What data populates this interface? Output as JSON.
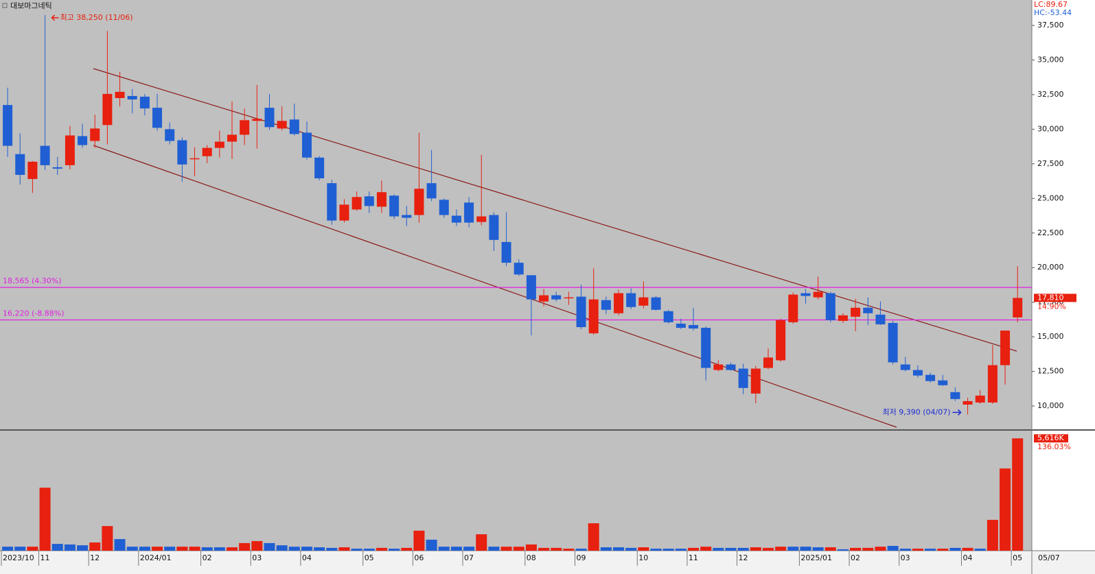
{
  "chart_data": {
    "type": "candlestick",
    "title": "대보마그네틱",
    "indicators": [
      "LC:89.67",
      "HC:-53.44"
    ],
    "date_label": "05/07",
    "up_color": "#e8200f",
    "down_color": "#1f5fd3",
    "categories": [
      "2023/10",
      null,
      null,
      "11",
      null,
      null,
      null,
      "12",
      null,
      null,
      null,
      "2024/01",
      null,
      null,
      null,
      null,
      "02",
      null,
      null,
      null,
      "03",
      null,
      null,
      null,
      "04",
      null,
      null,
      null,
      null,
      "05",
      null,
      null,
      null,
      "06",
      null,
      null,
      null,
      "07",
      null,
      null,
      null,
      null,
      "08",
      null,
      null,
      null,
      "09",
      null,
      null,
      null,
      null,
      "10",
      null,
      null,
      null,
      "11",
      null,
      null,
      null,
      "12",
      null,
      null,
      null,
      null,
      "2025/01",
      null,
      null,
      null,
      "02",
      null,
      null,
      null,
      "03",
      null,
      null,
      null,
      null,
      "04",
      null,
      null,
      null,
      "05"
    ],
    "open": [
      31750,
      28200,
      26400,
      28800,
      27250,
      27400,
      29500,
      29150,
      30300,
      32250,
      32400,
      32350,
      31550,
      30000,
      29200,
      27850,
      28050,
      28650,
      29100,
      29600,
      30600,
      31550,
      30050,
      30700,
      29750,
      27950,
      26100,
      23400,
      24200,
      25150,
      24400,
      25200,
      23800,
      23800,
      26100,
      24900,
      23750,
      24700,
      23300,
      23800,
      21850,
      20350,
      19450,
      17550,
      18000,
      17800,
      17900,
      15250,
      17650,
      16700,
      18150,
      17250,
      17850,
      16850,
      15950,
      15850,
      15650,
      12600,
      13000,
      12700,
      10900,
      12750,
      13300,
      16050,
      18150,
      17850,
      18150,
      16150,
      16450,
      17100,
      16600,
      16000,
      13000,
      12600,
      12250,
      11850,
      11000,
      10100,
      10250,
      10250,
      12950,
      16400
    ],
    "high": [
      33000,
      29700,
      27700,
      38250,
      28000,
      30250,
      30400,
      31050,
      37100,
      34150,
      32900,
      32550,
      32550,
      30500,
      29400,
      28700,
      28850,
      29900,
      32000,
      31500,
      33200,
      32550,
      31650,
      31850,
      30550,
      28050,
      26350,
      24950,
      25500,
      25500,
      26300,
      25300,
      24450,
      29750,
      28500,
      25000,
      24200,
      25100,
      28150,
      24000,
      24000,
      20600,
      19450,
      18450,
      18250,
      18250,
      18750,
      19950,
      17900,
      18400,
      18500,
      19000,
      17950,
      16950,
      16300,
      17100,
      15750,
      13300,
      13150,
      13050,
      12900,
      14150,
      16300,
      18200,
      18450,
      19350,
      18250,
      16700,
      17750,
      17850,
      17550,
      16150,
      13550,
      12950,
      12400,
      12250,
      11350,
      10600,
      11150,
      14400,
      15450,
      20100
    ],
    "low": [
      28000,
      26000,
      25400,
      27050,
      26700,
      27100,
      28650,
      28650,
      28900,
      31650,
      31150,
      31000,
      29900,
      28900,
      26200,
      26600,
      27550,
      27950,
      27850,
      28850,
      28600,
      29950,
      29900,
      29550,
      27800,
      26300,
      23100,
      23250,
      24100,
      23950,
      23950,
      23500,
      23000,
      23250,
      24800,
      23600,
      23000,
      22900,
      23050,
      21200,
      20100,
      19400,
      15100,
      17200,
      17550,
      17300,
      15550,
      15150,
      16650,
      16550,
      17000,
      17050,
      16900,
      15950,
      15550,
      15450,
      11850,
      12500,
      12550,
      10850,
      10200,
      12650,
      13200,
      15950,
      17400,
      17700,
      16050,
      16000,
      15400,
      15850,
      15850,
      13000,
      12500,
      12050,
      11700,
      11450,
      10350,
      9390,
      10150,
      10150,
      11550,
      16050
    ],
    "close": [
      28800,
      26700,
      27650,
      27400,
      27150,
      29550,
      28850,
      30050,
      32550,
      32700,
      32150,
      31500,
      30100,
      29150,
      27450,
      27900,
      28650,
      29100,
      29600,
      30650,
      30750,
      30150,
      30600,
      29650,
      27950,
      26450,
      23400,
      24550,
      25100,
      24450,
      25450,
      23700,
      23600,
      25700,
      25000,
      23800,
      23250,
      23250,
      23700,
      22000,
      20350,
      19500,
      17700,
      18000,
      17700,
      17850,
      15700,
      17700,
      16950,
      18150,
      17150,
      17850,
      16950,
      16050,
      15650,
      15600,
      12750,
      13000,
      12600,
      11300,
      12700,
      13500,
      16200,
      18050,
      17950,
      18250,
      16200,
      16550,
      17100,
      16700,
      15900,
      13150,
      12600,
      12200,
      11800,
      11500,
      10500,
      10350,
      10750,
      12950,
      15450,
      17810
    ],
    "last_price_label": "17,810",
    "last_change_label": "14.90%",
    "ylim": [
      8365,
      39336
    ],
    "yticks": [
      {
        "value": 10000,
        "label": "10,000"
      },
      {
        "value": 12500,
        "label": "12,500"
      },
      {
        "value": 15000,
        "label": "15,000"
      },
      {
        "value": 17500,
        "label": "17,500"
      },
      {
        "value": 20000,
        "label": "20,000"
      },
      {
        "value": 22500,
        "label": "22,500"
      },
      {
        "value": 25000,
        "label": "25,000"
      },
      {
        "value": 27500,
        "label": "27,500"
      },
      {
        "value": 30000,
        "label": "30,000"
      },
      {
        "value": 32500,
        "label": "32,500"
      },
      {
        "value": 35000,
        "label": "35,000"
      },
      {
        "value": 37500,
        "label": "37,500"
      }
    ],
    "hlines_color": "#e020e0",
    "hlines": [
      {
        "value": 18565,
        "label": "18,565 (4.30%)"
      },
      {
        "value": 16220,
        "label": "16,220 (-8.88%)"
      }
    ],
    "annotations": [
      {
        "label": "최고 38,250 (11/06)",
        "value": 38250,
        "color": "#e8200f"
      },
      {
        "label": "최저 9,390 (04/07)",
        "value": 9390,
        "color": "#1c2bd0"
      }
    ],
    "volume": {
      "values": [
        200,
        200,
        200,
        3150,
        340,
        310,
        270,
        410,
        1230,
        580,
        200,
        200,
        200,
        200,
        200,
        200,
        170,
        170,
        170,
        380,
        480,
        380,
        270,
        200,
        200,
        170,
        140,
        170,
        100,
        100,
        140,
        100,
        140,
        1000,
        550,
        200,
        200,
        200,
        820,
        200,
        200,
        200,
        310,
        140,
        140,
        100,
        100,
        1370,
        170,
        170,
        140,
        170,
        100,
        100,
        100,
        140,
        200,
        140,
        140,
        140,
        170,
        140,
        200,
        200,
        200,
        170,
        170,
        70,
        140,
        140,
        200,
        240,
        100,
        100,
        100,
        100,
        140,
        140,
        100,
        1540,
        4110,
        5616
      ],
      "colors": [
        "#1f5fd3",
        "#1f5fd3",
        "#e8200f",
        "#e8200f",
        "#1f5fd3",
        "#1f5fd3",
        "#1f5fd3",
        "#e8200f",
        "#e8200f",
        "#1f5fd3",
        "#1f5fd3",
        "#1f5fd3",
        "#e8200f",
        "#1f5fd3",
        "#e8200f",
        "#e8200f",
        "#1f5fd3",
        "#1f5fd3",
        "#e8200f",
        "#e8200f",
        "#e8200f",
        "#1f5fd3",
        "#1f5fd3",
        "#1f5fd3",
        "#1f5fd3",
        "#1f5fd3",
        "#1f5fd3",
        "#e8200f",
        "#1f5fd3",
        "#1f5fd3",
        "#e8200f",
        "#1f5fd3",
        "#e8200f",
        "#e8200f",
        "#1f5fd3",
        "#1f5fd3",
        "#1f5fd3",
        "#1f5fd3",
        "#e8200f",
        "#1f5fd3",
        "#e8200f",
        "#e8200f",
        "#e8200f",
        "#e8200f",
        "#e8200f",
        "#e8200f",
        "#1f5fd3",
        "#e8200f",
        "#1f5fd3",
        "#1f5fd3",
        "#1f5fd3",
        "#e8200f",
        "#1f5fd3",
        "#1f5fd3",
        "#1f5fd3",
        "#e8200f",
        "#e8200f",
        "#1f5fd3",
        "#1f5fd3",
        "#1f5fd3",
        "#e8200f",
        "#e8200f",
        "#e8200f",
        "#1f5fd3",
        "#1f5fd3",
        "#1f5fd3",
        "#e8200f",
        "#1f5fd3",
        "#e8200f",
        "#e8200f",
        "#e8200f",
        "#1f5fd3",
        "#1f5fd3",
        "#e8200f",
        "#1f5fd3",
        "#e8200f",
        "#1f5fd3",
        "#e8200f",
        "#1f5fd3",
        "#e8200f",
        "#e8200f",
        "#e8200f"
      ],
      "ylim": [
        0,
        6000
      ],
      "last_label": "5,616K",
      "last_change_label": "136.03%"
    }
  }
}
